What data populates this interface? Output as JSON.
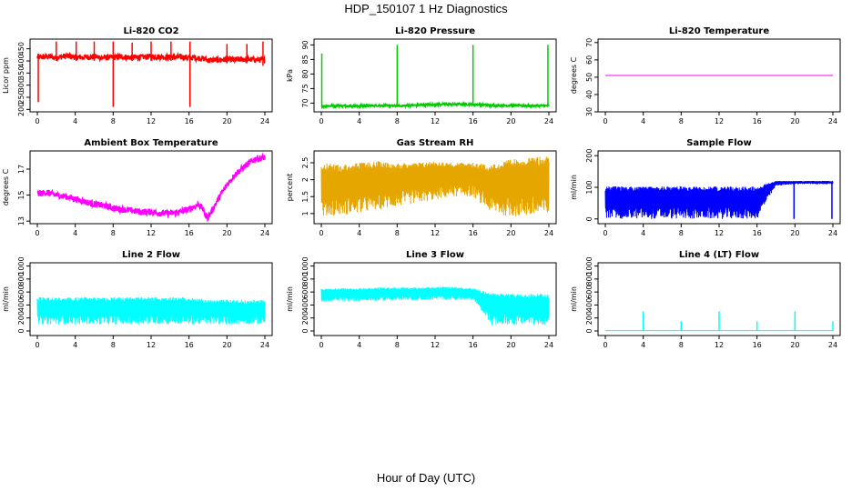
{
  "figure": {
    "title": "HDP_150107  1 Hz Diagnostics",
    "xlabel": "Hour of Day (UTC)"
  },
  "chart_data": [
    {
      "type": "line",
      "title": "Li-820 CO2",
      "ylabel": "Licor ppm",
      "color": "#ff0000",
      "xlim": [
        0,
        24
      ],
      "ylim": [
        190,
        490
      ],
      "xticks": [
        0,
        4,
        8,
        12,
        16,
        20,
        24
      ],
      "yticks": [
        200,
        250,
        300,
        350,
        400,
        450
      ],
      "series": [
        {
          "x": [
            0,
            1,
            2,
            3,
            4,
            5,
            6,
            7,
            8,
            9,
            10,
            11,
            12,
            13,
            14,
            15,
            16,
            17,
            17.5,
            18,
            19,
            20,
            21,
            22,
            23,
            24
          ],
          "y": [
            415,
            418,
            414,
            420,
            416,
            415,
            418,
            413,
            415,
            417,
            414,
            416,
            418,
            417,
            415,
            416,
            414,
            412,
            410,
            403,
            404,
            406,
            405,
            407,
            405,
            404
          ]
        }
      ],
      "spikes": [
        {
          "x": 0.1,
          "lo": 230,
          "hi": 430
        },
        {
          "x": 2.0,
          "lo": 400,
          "hi": 480
        },
        {
          "x": 4.1,
          "lo": 400,
          "hi": 480
        },
        {
          "x": 6.0,
          "lo": 400,
          "hi": 480
        },
        {
          "x": 8.0,
          "lo": 210,
          "hi": 480
        },
        {
          "x": 10.0,
          "lo": 400,
          "hi": 475
        },
        {
          "x": 12.0,
          "lo": 400,
          "hi": 480
        },
        {
          "x": 14.1,
          "lo": 400,
          "hi": 480
        },
        {
          "x": 16.1,
          "lo": 210,
          "hi": 480
        },
        {
          "x": 20.0,
          "lo": 390,
          "hi": 470
        },
        {
          "x": 22.1,
          "lo": 390,
          "hi": 470
        },
        {
          "x": 23.8,
          "lo": 380,
          "hi": 480
        }
      ],
      "noise": 12
    },
    {
      "type": "line",
      "title": "Li-820 Pressure",
      "ylabel": "kPa",
      "color": "#00cc00",
      "xlim": [
        0,
        24
      ],
      "ylim": [
        67,
        92
      ],
      "xticks": [
        0,
        4,
        8,
        12,
        16,
        20,
        24
      ],
      "yticks": [
        70,
        75,
        80,
        85,
        90
      ],
      "series": [
        {
          "x": [
            0,
            2,
            4,
            6,
            8,
            10,
            12,
            14,
            16,
            17,
            18,
            20,
            22,
            24
          ],
          "y": [
            69.0,
            69.1,
            69.0,
            69.2,
            69.0,
            69.3,
            69.5,
            69.6,
            69.6,
            69.4,
            69.2,
            69.2,
            69.1,
            69.1
          ]
        }
      ],
      "spikes": [
        {
          "x": 0.05,
          "lo": 69,
          "hi": 87
        },
        {
          "x": 8.0,
          "lo": 69,
          "hi": 90
        },
        {
          "x": 16.0,
          "lo": 69,
          "hi": 90
        },
        {
          "x": 23.9,
          "lo": 69,
          "hi": 90
        }
      ],
      "noise": 0.4
    },
    {
      "type": "line",
      "title": "Li-820 Temperature",
      "ylabel": "degrees C",
      "color": "#ff00ff",
      "xlim": [
        0,
        24
      ],
      "ylim": [
        30,
        72
      ],
      "xticks": [
        0,
        4,
        8,
        12,
        16,
        20,
        24
      ],
      "yticks": [
        30,
        40,
        50,
        60,
        70
      ],
      "series": [
        {
          "x": [
            0,
            24
          ],
          "y": [
            51,
            51
          ]
        }
      ],
      "spikes": [],
      "noise": 0
    },
    {
      "type": "line",
      "title": "Ambient Box Temperature",
      "ylabel": "degrees C",
      "color": "#ff00ff",
      "xlim": [
        0,
        24
      ],
      "ylim": [
        12.8,
        18.4
      ],
      "xticks": [
        0,
        4,
        8,
        12,
        16,
        20,
        24
      ],
      "yticks": [
        13,
        15,
        17
      ],
      "series": [
        {
          "x": [
            0,
            1,
            2,
            3,
            4,
            5,
            6,
            7,
            8,
            9,
            10,
            11,
            12,
            13,
            14,
            15,
            16,
            17,
            17.4,
            17.7,
            18.0,
            18.5,
            19,
            20,
            21,
            22,
            23,
            24
          ],
          "y": [
            15.1,
            15.2,
            15.0,
            14.9,
            14.7,
            14.5,
            14.3,
            14.2,
            14.0,
            13.9,
            13.8,
            13.7,
            13.7,
            13.6,
            13.6,
            13.7,
            13.9,
            14.3,
            14.0,
            13.5,
            13.3,
            13.9,
            14.6,
            15.8,
            16.7,
            17.3,
            17.8,
            17.9
          ]
        }
      ],
      "spikes": [],
      "noise": 0.25
    },
    {
      "type": "line",
      "title": "Gas Stream RH",
      "ylabel": "percent",
      "color": "#e6a600",
      "xlim": [
        0,
        24
      ],
      "ylim": [
        0.7,
        2.85
      ],
      "xticks": [
        0,
        4,
        8,
        12,
        16,
        20,
        24
      ],
      "yticks": [
        1.0,
        1.5,
        2.0,
        2.5
      ],
      "series": [
        {
          "x": [
            0,
            24
          ],
          "y": [
            1.7,
            1.7
          ]
        }
      ],
      "band": {
        "lo": [
          0.9,
          0.95,
          1.0,
          1.1,
          1.2,
          1.3,
          1.4,
          1.5,
          1.5,
          1.0,
          0.9,
          0.9,
          0.9
        ],
        "hi": [
          2.5,
          2.45,
          2.5,
          2.55,
          2.5,
          2.5,
          2.55,
          2.5,
          2.5,
          2.45,
          2.6,
          2.65,
          2.7
        ]
      },
      "spikes": [],
      "noise": 0
    },
    {
      "type": "line",
      "title": "Sample Flow",
      "ylabel": "ml/min",
      "color": "#0000ff",
      "xlim": [
        0,
        24
      ],
      "ylim": [
        -15,
        215
      ],
      "xticks": [
        0,
        4,
        8,
        12,
        16,
        20,
        24
      ],
      "yticks": [
        0,
        100,
        200
      ],
      "series": [
        {
          "x": [
            0,
            17.6,
            18.0,
            24
          ],
          "y": [
            100,
            100,
            118,
            118
          ]
        }
      ],
      "band": {
        "lo": [
          0,
          0,
          0,
          0,
          0,
          0,
          0,
          0,
          0,
          105,
          110,
          110,
          110
        ],
        "hi": [
          103,
          103,
          103,
          103,
          103,
          103,
          103,
          103,
          103,
          120,
          120,
          120,
          120
        ]
      },
      "spikes": [
        {
          "x": 19.9,
          "lo": 0,
          "hi": 118
        },
        {
          "x": 23.9,
          "lo": 0,
          "hi": 118
        }
      ],
      "noise": 0
    },
    {
      "type": "line",
      "title": "Line 2 Flow",
      "ylabel": "ml/min",
      "color": "#00ffff",
      "xlim": [
        0,
        24
      ],
      "ylim": [
        -70,
        1050
      ],
      "xticks": [
        0,
        4,
        8,
        12,
        16,
        20,
        24
      ],
      "yticks": [
        0,
        200,
        400,
        600,
        800,
        1000
      ],
      "series": [
        {
          "x": [
            0,
            24
          ],
          "y": [
            300,
            300
          ]
        }
      ],
      "band": {
        "lo": [
          100,
          100,
          100,
          100,
          100,
          100,
          100,
          100,
          100,
          100,
          100,
          100,
          100
        ],
        "hi": [
          520,
          520,
          520,
          520,
          520,
          520,
          520,
          520,
          520,
          480,
          480,
          480,
          480
        ]
      },
      "spikes": [],
      "noise": 0
    },
    {
      "type": "line",
      "title": "Line 3 Flow",
      "ylabel": "ml/min",
      "color": "#00ffff",
      "xlim": [
        0,
        24
      ],
      "ylim": [
        -70,
        1050
      ],
      "xticks": [
        0,
        4,
        8,
        12,
        16,
        20,
        24
      ],
      "yticks": [
        0,
        200,
        400,
        600,
        800,
        1000
      ],
      "series": [
        {
          "x": [
            0,
            24
          ],
          "y": [
            550,
            550
          ]
        }
      ],
      "band": {
        "lo": [
          450,
          450,
          460,
          460,
          470,
          470,
          480,
          480,
          480,
          90,
          90,
          90,
          90
        ],
        "hi": [
          650,
          660,
          660,
          670,
          670,
          670,
          680,
          680,
          660,
          580,
          570,
          570,
          570
        ]
      },
      "spikes": [],
      "noise": 0
    },
    {
      "type": "line",
      "title": "Line 4 (LT) Flow",
      "ylabel": "ml/min",
      "color": "#00ffff",
      "xlim": [
        0,
        24
      ],
      "ylim": [
        -70,
        1050
      ],
      "xticks": [
        0,
        4,
        8,
        12,
        16,
        20,
        24
      ],
      "yticks": [
        0,
        200,
        400,
        600,
        800,
        1000
      ],
      "series": [
        {
          "x": [
            0,
            24
          ],
          "y": [
            5,
            5
          ]
        }
      ],
      "spikes": [
        {
          "x": 4.0,
          "lo": 0,
          "hi": 300
        },
        {
          "x": 8.0,
          "lo": 0,
          "hi": 150
        },
        {
          "x": 12.0,
          "lo": 0,
          "hi": 300
        },
        {
          "x": 16.0,
          "lo": 0,
          "hi": 150
        },
        {
          "x": 20.0,
          "lo": 0,
          "hi": 300
        },
        {
          "x": 24.0,
          "lo": 0,
          "hi": 150
        }
      ],
      "noise": 0
    }
  ]
}
